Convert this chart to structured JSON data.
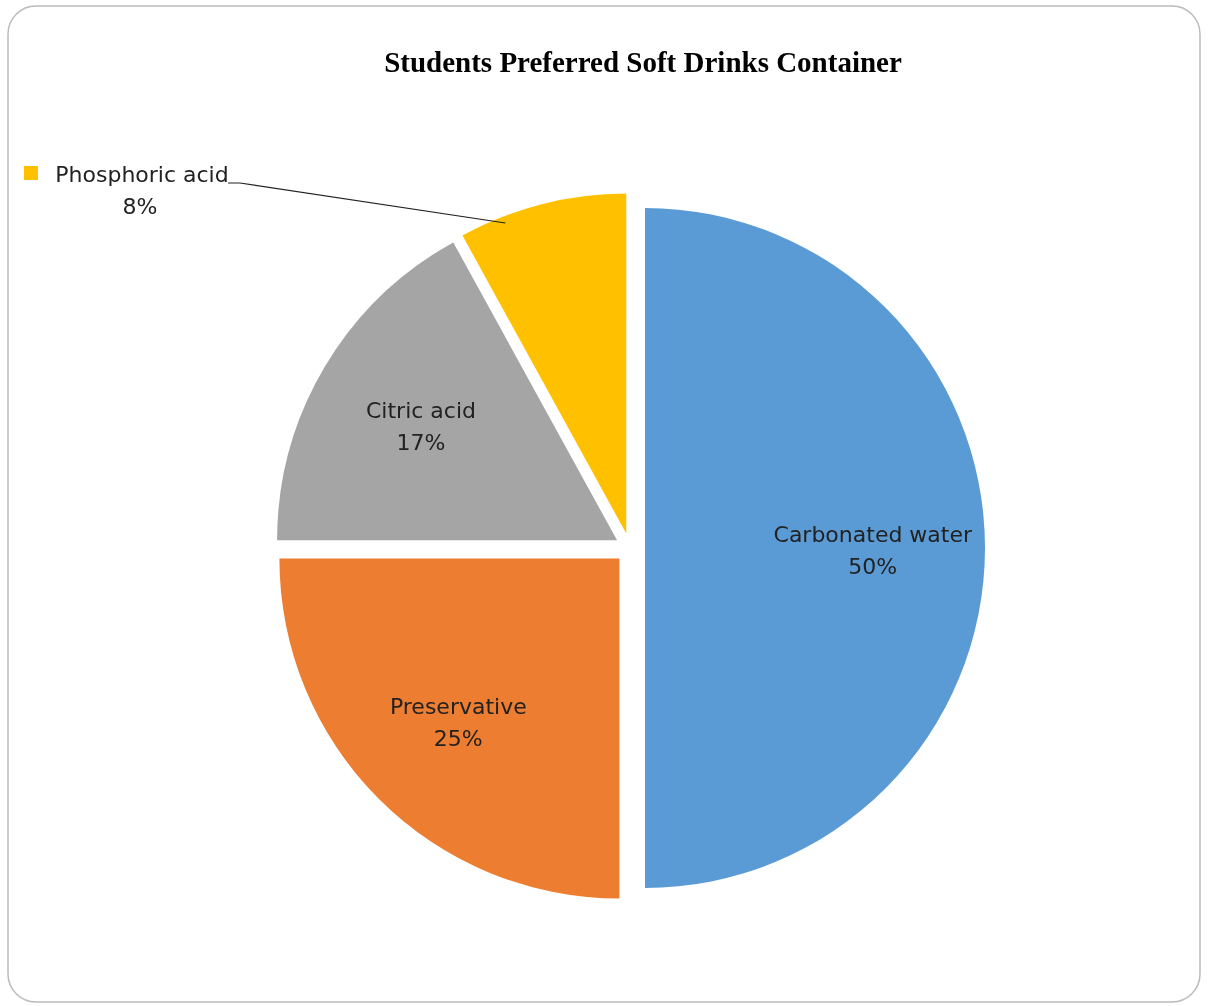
{
  "chart_data": {
    "type": "pie",
    "title": "Students Preferred Soft Drinks Container",
    "categories": [
      "Carbonated water",
      "Preservative",
      "Citric acid",
      "Phosphoric acid"
    ],
    "values": [
      50,
      25,
      17,
      8
    ],
    "colors": [
      "#5b9bd5",
      "#ed7d31",
      "#a5a5a5",
      "#ffc000"
    ],
    "value_labels": [
      "50%",
      "25%",
      "17%",
      "8%"
    ]
  }
}
